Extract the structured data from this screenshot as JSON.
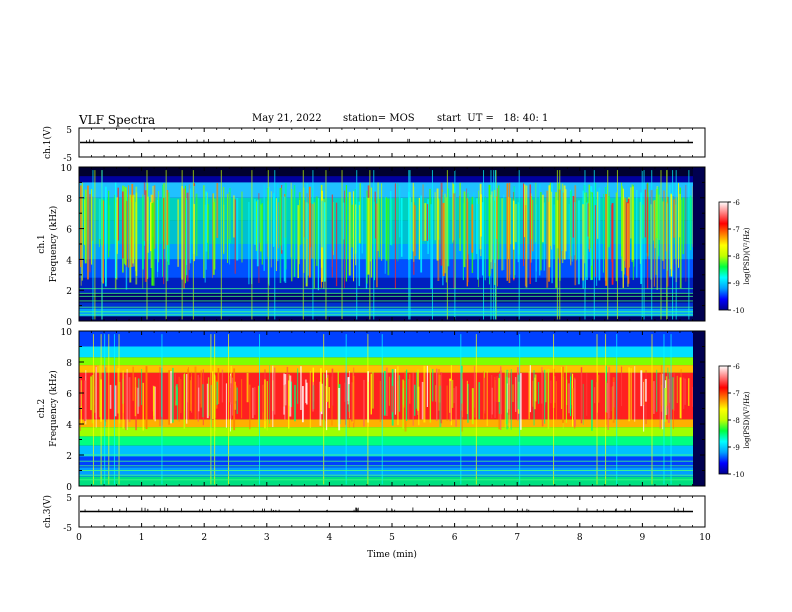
{
  "header": {
    "title": "VLF Spectra",
    "date": "May 21, 2022",
    "station": "station= MOS",
    "start": "start  UT =   18: 40: 1"
  },
  "colors": {
    "spectral_scale": [
      "#00008b",
      "#0000ff",
      "#0080ff",
      "#00e0ff",
      "#00ff80",
      "#40ff00",
      "#c0ff00",
      "#ffff00",
      "#ff8000",
      "#ff2020",
      "#ff6060",
      "#ffffff"
    ],
    "trace": "#000000",
    "axis": "#000000"
  },
  "chart_data": [
    {
      "type": "line",
      "name_label": "ch.1(V)",
      "ylim": [
        -5,
        5
      ],
      "yticks": [
        "5",
        "-5"
      ],
      "xlim": [
        0,
        10
      ],
      "trace_level": 0
    },
    {
      "type": "heatmap",
      "ylabel_top": "ch.1",
      "ylabel_bottom": "Frequency (kHz)",
      "ylim": [
        0,
        10
      ],
      "yticks": [
        "0",
        "2",
        "4",
        "6",
        "8",
        "10"
      ],
      "xlim": [
        0,
        10
      ],
      "colorbar": {
        "label": "log(PSD)(V²/Hz)",
        "ticks": [
          "-6",
          "-7",
          "-8",
          "-9",
          "-10"
        ],
        "range": [
          -10,
          -6
        ]
      },
      "spectral_band_khz": [
        1.8,
        9.0
      ],
      "dominant_level": -8
    },
    {
      "type": "heatmap",
      "ylabel_top": "ch.2",
      "ylabel_bottom": "Frequency (kHz)",
      "ylim": [
        0,
        10
      ],
      "yticks": [
        "0",
        "2",
        "4",
        "6",
        "8",
        "10"
      ],
      "xlim": [
        0,
        10
      ],
      "colorbar": {
        "label": "log(PSD)(V²/Hz)",
        "ticks": [
          "-6",
          "-7",
          "-8",
          "-9",
          "-10"
        ],
        "range": [
          -10,
          -6
        ]
      },
      "peak_band_khz": [
        4.0,
        8.0
      ],
      "dominant_level": -6.5
    },
    {
      "type": "line",
      "name_label": "ch.3(V)",
      "ylim": [
        -5,
        5
      ],
      "yticks": [
        "5",
        "-5"
      ],
      "xlim": [
        0,
        10
      ],
      "trace_level": 0
    }
  ],
  "xaxis": {
    "label": "Time  (min)",
    "ticks": [
      "0",
      "1",
      "2",
      "3",
      "4",
      "5",
      "6",
      "7",
      "8",
      "9",
      "10"
    ]
  }
}
